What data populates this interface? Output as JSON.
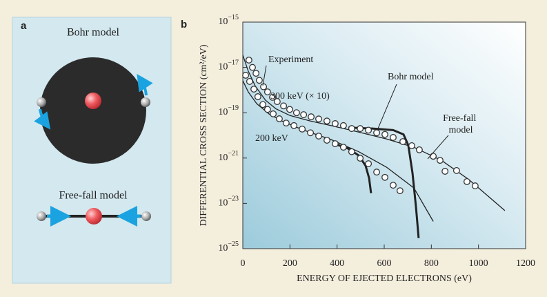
{
  "panels": {
    "a": {
      "label": "a",
      "top_caption": "Bohr model",
      "bottom_caption": "Free-fall model"
    }
  },
  "chart_data": {
    "type": "scatter",
    "panel_label": "b",
    "x_label": "ENERGY OF EJECTED ELECTRONS (eV)",
    "y_label": "DIFFERENTIAL CROSS SECTION (cm²/eV)",
    "xlim": [
      0,
      1200
    ],
    "xticks": [
      0,
      200,
      400,
      600,
      800,
      1000,
      1200
    ],
    "ylim": [
      1e-25,
      1e-15
    ],
    "log_y": true,
    "yticks": [
      {
        "value": 1e-25,
        "label": "10−25"
      },
      {
        "value": 1e-23,
        "label": "10−23"
      },
      {
        "value": 1e-21,
        "label": "10−21"
      },
      {
        "value": 1e-19,
        "label": "10−19"
      },
      {
        "value": 1e-17,
        "label": "10−17"
      },
      {
        "value": 1e-15,
        "label": "10−15"
      }
    ],
    "annotations": [
      "Experiment",
      "300 keV (× 10)",
      "200 keV",
      "Bohr model",
      "Free-fall model"
    ],
    "series": [
      {
        "type": "scatter",
        "color": "#333333",
        "x": [
          26,
          41,
          56,
          70,
          88,
          105,
          126,
          146,
          173,
          199,
          228,
          258,
          290,
          322,
          357,
          392,
          427,
          462,
          498,
          533,
          568,
          603,
          638,
          679,
          717,
          749,
          808,
          837,
          858,
          907,
          951,
          986
        ],
        "values": [
          2.1e-17,
          1e-17,
          5.5e-18,
          2.7e-18,
          1.4e-18,
          8.3e-19,
          4.8e-19,
          3.1e-19,
          2e-19,
          1.4e-19,
          1e-19,
          8.2e-20,
          6.6e-20,
          5.3e-20,
          4.3e-20,
          3.3e-20,
          2.7e-20,
          2e-20,
          2e-20,
          1.7e-20,
          1.3e-20,
          1.1e-20,
          8.1e-21,
          5.3e-21,
          3.5e-21,
          2.3e-21,
          1.2e-21,
          7.9e-22,
          2.6e-22,
          2.8e-22,
          9.1e-23,
          5.9e-23
        ]
      },
      {
        "type": "scatter",
        "color": "#333333",
        "x": [
          12,
          29,
          47,
          64,
          85,
          105,
          129,
          155,
          184,
          217,
          252,
          287,
          322,
          357,
          392,
          427,
          462,
          498,
          533,
          568,
          603,
          638,
          667
        ],
        "values": [
          4.5e-18,
          2.4e-18,
          1.1e-18,
          5.1e-19,
          2.3e-19,
          1.4e-19,
          8.9e-20,
          5.4e-20,
          3.5e-20,
          2.7e-20,
          1.9e-20,
          1.3e-20,
          9.3e-21,
          6.1e-21,
          4.3e-21,
          3e-21,
          1.9e-21,
          9.8e-22,
          5.6e-22,
          2.4e-22,
          1.4e-22,
          6.3e-23,
          3.6e-23
        ]
      },
      {
        "type": "line",
        "color": "#222222",
        "width": 1.3,
        "x": [
          0,
          23,
          53,
          96,
          140,
          199,
          287,
          375,
          492,
          609,
          726,
          843,
          960,
          1112
        ],
        "values": [
          3.5e-17,
          6.9e-18,
          1.5e-18,
          3.6e-19,
          1.5e-19,
          7.6e-20,
          4.3e-20,
          2.7e-20,
          1.4e-20,
          7e-21,
          3e-21,
          7.9e-22,
          1.1e-22,
          4.8e-24
        ]
      },
      {
        "type": "line",
        "color": "#222222",
        "width": 1.3,
        "x": [
          0,
          23,
          59,
          111,
          170,
          258,
          375,
          492,
          609,
          726,
          808
        ],
        "values": [
          2.6e-18,
          8.3e-19,
          2.5e-19,
          8.9e-20,
          4.1e-20,
          1.7e-20,
          6.5e-21,
          1.9e-21,
          4e-22,
          4.8e-23,
          1.6e-24
        ]
      },
      {
        "type": "line",
        "color": "#222222",
        "width": 3,
        "x": [
          448,
          550,
          638,
          682,
          702,
          720,
          735,
          746
        ],
        "values": [
          2.2e-20,
          2e-20,
          1.7e-20,
          1.1e-20,
          3.7e-21,
          2.2e-22,
          6.7e-24,
          2.9e-25
        ]
      },
      {
        "type": "line",
        "color": "#222222",
        "width": 3,
        "x": [
          380,
          448,
          492,
          521,
          536,
          544
        ],
        "values": [
          4.6e-21,
          2.6e-21,
          1.3e-21,
          4.6e-22,
          1.3e-22,
          2.8e-23
        ]
      }
    ]
  }
}
